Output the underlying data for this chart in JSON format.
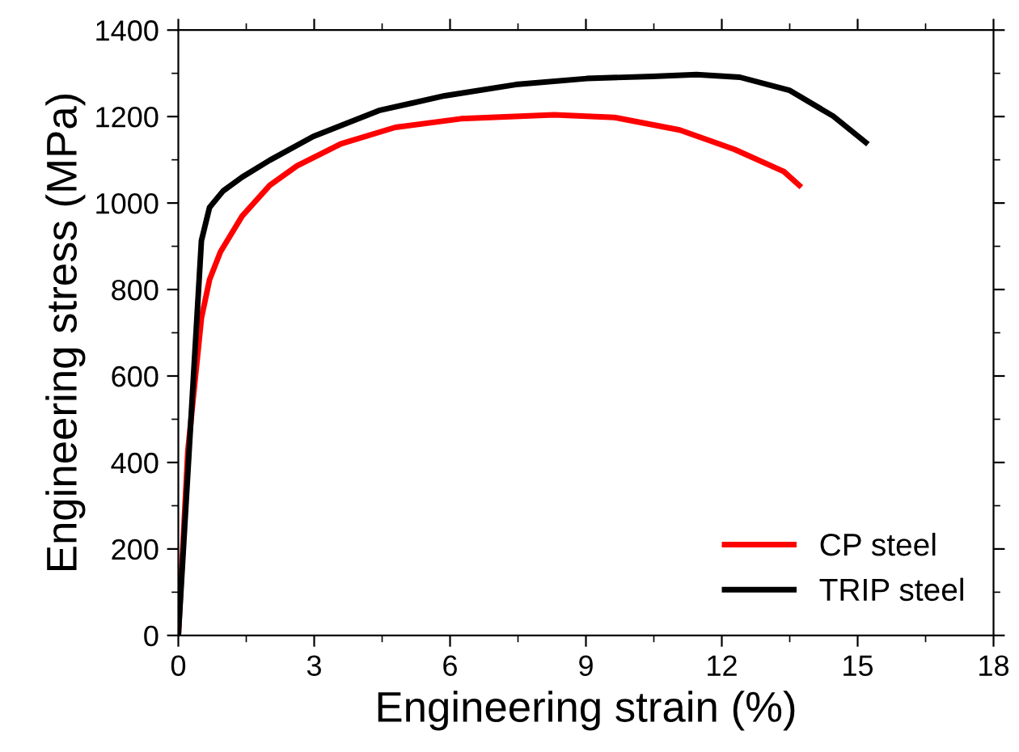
{
  "chart_data": {
    "type": "line",
    "xlabel": "Engineering strain (%)",
    "ylabel": "Engineering stress (MPa)",
    "xlim": [
      0,
      18
    ],
    "xticks": [
      0,
      3,
      6,
      9,
      12,
      15,
      18
    ],
    "ylim": [
      0,
      1400
    ],
    "yticks": [
      0,
      200,
      400,
      600,
      800,
      1000,
      1200,
      1400
    ],
    "legend": "bottom right",
    "grid": false,
    "series": [
      {
        "name": "CP steel",
        "color": "#ff0000",
        "x": [
          0,
          0.21,
          0.51,
          0.69,
          0.93,
          1.41,
          2.02,
          2.62,
          3.59,
          4.79,
          6.24,
          8.3,
          9.63,
          11.07,
          12.28,
          13.37,
          13.71
        ],
        "values": [
          0,
          426,
          734,
          823,
          887,
          970,
          1041,
          1086,
          1137,
          1175,
          1195,
          1204,
          1198,
          1169,
          1124,
          1073,
          1041
        ]
      },
      {
        "name": "TRIP steel",
        "color": "#000000",
        "x": [
          0,
          0.51,
          0.69,
          0.99,
          1.41,
          2.02,
          2.98,
          4.43,
          5.88,
          7.45,
          9.02,
          10.47,
          11.44,
          12.4,
          13.49,
          14.46,
          15.18
        ],
        "values": [
          0,
          913,
          990,
          1028,
          1060,
          1099,
          1154,
          1214,
          1248,
          1274,
          1288,
          1293,
          1297,
          1291,
          1261,
          1201,
          1140
        ]
      }
    ]
  }
}
